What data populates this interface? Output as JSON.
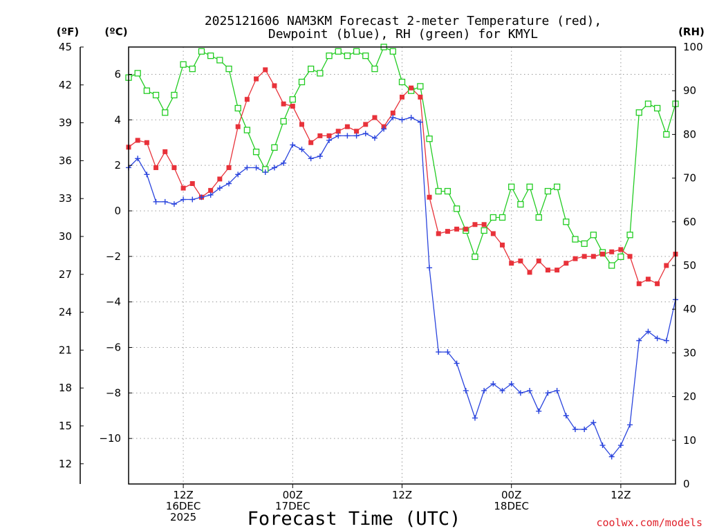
{
  "chart_data": {
    "type": "line",
    "title": [
      "2025121606 NAM3KM Forecast 2-meter Temperature (red),",
      "Dewpoint (blue), RH (green) for KMYL"
    ],
    "xlabel": "Forecast Time (UTC)",
    "credit": "coolwx.com/models",
    "axis_units": {
      "fahrenheit": "(ºF)",
      "celsius": "(ºC)",
      "rh": "(RH)"
    },
    "x_range_hours": [
      6,
      66
    ],
    "x_ticks": [
      {
        "hour": 12,
        "lines": [
          "12Z",
          "16DEC",
          "2025"
        ]
      },
      {
        "hour": 24,
        "lines": [
          "00Z",
          "17DEC"
        ]
      },
      {
        "hour": 36,
        "lines": [
          "12Z"
        ]
      },
      {
        "hour": 48,
        "lines": [
          "00Z",
          "18DEC"
        ]
      },
      {
        "hour": 60,
        "lines": [
          "12Z"
        ]
      }
    ],
    "celsius_axis": {
      "range": [
        -12,
        7.2
      ],
      "ticks": [
        6,
        4,
        2,
        0,
        -2,
        -4,
        -6,
        -8,
        -10
      ],
      "tick_labels": [
        "6",
        "4",
        "2",
        "0",
        "−2",
        "−4",
        "−6",
        "−8",
        "−10"
      ]
    },
    "fahrenheit_axis": {
      "range": [
        10.4,
        45
      ],
      "ticks": [
        45,
        42,
        39,
        36,
        33,
        30,
        27,
        24,
        21,
        18,
        15,
        12
      ]
    },
    "rh_axis": {
      "range": [
        0,
        100
      ],
      "ticks": [
        0,
        10,
        20,
        30,
        40,
        50,
        60,
        70,
        80,
        90,
        100
      ]
    },
    "colors": {
      "temperature": "#e8323a",
      "dewpoint": "#2a44dd",
      "rh": "#22cc22",
      "grid": "#9a9a9a"
    },
    "hours": [
      6,
      7,
      8,
      9,
      10,
      11,
      12,
      13,
      14,
      15,
      16,
      17,
      18,
      19,
      20,
      21,
      22,
      23,
      24,
      25,
      26,
      27,
      28,
      29,
      30,
      31,
      32,
      33,
      34,
      35,
      36,
      37,
      38,
      39,
      40,
      41,
      42,
      43,
      44,
      45,
      46,
      47,
      48,
      49,
      50,
      51,
      52,
      53,
      54,
      55,
      56,
      57,
      58,
      59,
      60,
      61,
      62,
      63,
      64,
      65,
      66
    ],
    "series": [
      {
        "name": "Temperature (°C)",
        "color": "#e8323a",
        "marker": "filled-square",
        "axis": "celsius",
        "values": [
          2.8,
          3.1,
          3.0,
          1.9,
          2.6,
          1.9,
          1.0,
          1.2,
          0.6,
          0.9,
          1.4,
          1.9,
          3.7,
          4.9,
          5.8,
          6.2,
          5.5,
          4.7,
          4.6,
          3.8,
          3.0,
          3.3,
          3.3,
          3.5,
          3.7,
          3.5,
          3.8,
          4.1,
          3.7,
          4.3,
          5.0,
          5.4,
          5.0,
          0.6,
          -1.0,
          -0.9,
          -0.8,
          -0.8,
          -0.6,
          -0.6,
          -1.0,
          -1.5,
          -2.3,
          -2.2,
          -2.7,
          -2.2,
          -2.6,
          -2.6,
          -2.3,
          -2.1,
          -2.0,
          -2.0,
          -1.9,
          -1.8,
          -1.7,
          -2.0,
          -3.2,
          -3.0,
          -3.2,
          -2.4,
          -1.9
        ]
      },
      {
        "name": "Dewpoint (°C)",
        "color": "#2a44dd",
        "marker": "plus",
        "axis": "celsius",
        "values": [
          1.9,
          2.3,
          1.6,
          0.4,
          0.4,
          0.3,
          0.5,
          0.5,
          0.6,
          0.7,
          1.0,
          1.2,
          1.6,
          1.9,
          1.9,
          1.7,
          1.9,
          2.1,
          2.9,
          2.7,
          2.3,
          2.4,
          3.1,
          3.3,
          3.3,
          3.3,
          3.4,
          3.2,
          3.6,
          4.1,
          4.0,
          4.1,
          3.9,
          -2.5,
          -6.2,
          -6.2,
          -6.7,
          -7.9,
          -9.1,
          -7.9,
          -7.6,
          -7.9,
          -7.6,
          -8.0,
          -7.9,
          -8.8,
          -8.0,
          -7.9,
          -9.0,
          -9.6,
          -9.6,
          -9.3,
          -10.3,
          -10.8,
          -10.3,
          -9.4,
          -5.7,
          -5.3,
          -5.6,
          -5.7,
          -3.9
        ]
      },
      {
        "name": "Relative Humidity (%)",
        "color": "#22cc22",
        "marker": "open-square",
        "axis": "rh",
        "values": [
          93,
          94,
          90,
          89,
          85,
          89,
          96,
          95,
          99,
          98,
          97,
          95,
          86,
          81,
          76,
          72,
          77,
          83,
          88,
          92,
          95,
          94,
          98,
          99,
          98,
          99,
          98,
          95,
          100,
          99,
          92,
          90,
          91,
          79,
          67,
          67,
          63,
          58,
          52,
          58,
          61,
          61,
          68,
          64,
          68,
          61,
          67,
          68,
          60,
          56,
          55,
          57,
          53,
          50,
          52,
          57,
          85,
          87,
          86,
          80,
          87
        ]
      }
    ]
  }
}
